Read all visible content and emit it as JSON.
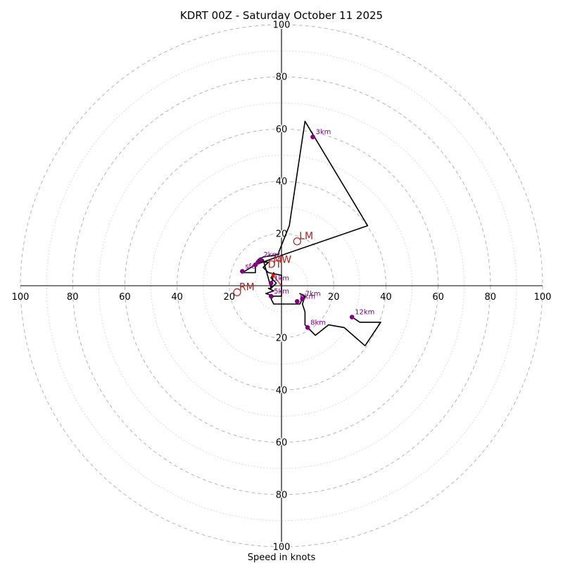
{
  "chart_data": {
    "type": "hodograph",
    "title": "KDRT 00Z - Saturday October 11 2025",
    "xlabel": "Speed in knots",
    "range": 100,
    "ring_ticks": [
      20,
      40,
      60,
      80,
      100
    ],
    "axis_tick_labels": [
      "20",
      "40",
      "60",
      "80",
      "100"
    ],
    "minor_rings": [
      10,
      30,
      50,
      70,
      90
    ],
    "trace": [
      [
        -3,
        -4
      ],
      [
        0,
        -4
      ],
      [
        0,
        4
      ],
      [
        -5,
        5
      ],
      [
        -7,
        7
      ],
      [
        -5,
        9
      ],
      [
        -7,
        9
      ],
      [
        -9,
        10
      ],
      [
        -7,
        11
      ],
      [
        -1,
        12
      ],
      [
        -1,
        13
      ],
      [
        3,
        23
      ],
      [
        9,
        63
      ],
      [
        33,
        23
      ],
      [
        1,
        12
      ],
      [
        -10,
        8
      ],
      [
        -10,
        5
      ],
      [
        -15,
        5
      ],
      [
        -10,
        8
      ],
      [
        -8,
        9
      ],
      [
        -7,
        10
      ],
      [
        -4,
        -1
      ],
      [
        -2,
        1
      ],
      [
        -3,
        2
      ],
      [
        -4,
        3
      ],
      [
        -3,
        5
      ],
      [
        -4,
        -1
      ],
      [
        -5,
        -1
      ],
      [
        -3,
        -2
      ],
      [
        -6,
        -3
      ],
      [
        -3,
        -4
      ],
      [
        -4,
        -5
      ],
      [
        -3,
        -7
      ],
      [
        7,
        -7
      ],
      [
        8,
        -5
      ],
      [
        9,
        -4
      ],
      [
        7,
        -3
      ],
      [
        9,
        -4
      ],
      [
        8,
        -7
      ],
      [
        9,
        -10
      ],
      [
        9,
        -15
      ],
      [
        13,
        -19
      ],
      [
        18,
        -15
      ],
      [
        24,
        -16
      ],
      [
        32,
        -23
      ],
      [
        38,
        -14
      ],
      [
        30,
        -14
      ],
      [
        27,
        -12
      ]
    ],
    "height_markers": [
      {
        "label": "sfc",
        "x": -15,
        "y": 5.5
      },
      {
        "label": "1km",
        "x": -4,
        "y": 1
      },
      {
        "label": "2km",
        "x": -8,
        "y": 10
      },
      {
        "label": "3km",
        "x": 12,
        "y": 57
      },
      {
        "label": "5km",
        "x": -4,
        "y": -4
      },
      {
        "label": "6km",
        "x": 6,
        "y": -6
      },
      {
        "label": "7km",
        "x": 8,
        "y": -5
      },
      {
        "label": "8km",
        "x": 10,
        "y": -16
      },
      {
        "label": "12km",
        "x": 27,
        "y": -12
      },
      {
        "label": "",
        "x": -9,
        "y": 9
      },
      {
        "label": "",
        "x": -10,
        "y": 8
      }
    ],
    "storm_motions": [
      {
        "label": "LM",
        "x": 6,
        "y": 17
      },
      {
        "label": "RM",
        "x": -17,
        "y": -2.5
      },
      {
        "label": "MW",
        "x": -4,
        "y": 8
      },
      {
        "label": "DT",
        "x": -6,
        "y": 6
      }
    ],
    "motion_vector": {
      "from": [
        0,
        0
      ],
      "to": [
        -4,
        5
      ]
    },
    "colors": {
      "trace": "#000000",
      "height_marker": "#800080",
      "storm_motion": "#b22222",
      "motion_vector": "#e8160c",
      "ring": "#b5b5b5"
    }
  }
}
